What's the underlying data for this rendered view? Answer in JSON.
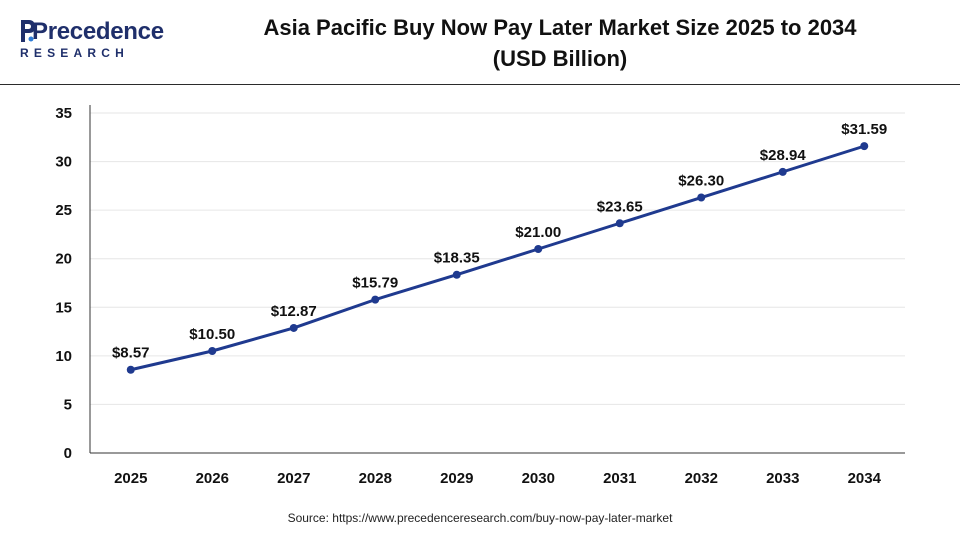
{
  "header": {
    "logo_word": "Precedence",
    "logo_sub": "RESEARCH",
    "title_line1": "Asia Pacific Buy Now Pay Later Market Size 2025 to 2034",
    "title_line2": "(USD Billion)"
  },
  "colors": {
    "series": "#1f3a8f",
    "logo": "#1f2f6b",
    "grid": "#e6e6e6",
    "axis": "#333333"
  },
  "chart_data": {
    "type": "line",
    "title": "Asia Pacific Buy Now Pay Later Market Size 2025 to 2034 (USD Billion)",
    "xlabel": "",
    "ylabel": "",
    "categories": [
      "2025",
      "2026",
      "2027",
      "2028",
      "2029",
      "2030",
      "2031",
      "2032",
      "2033",
      "2034"
    ],
    "series": [
      {
        "values": [
          8.57,
          10.5,
          12.87,
          15.79,
          18.35,
          21.0,
          23.65,
          26.3,
          28.94,
          31.59
        ],
        "labels": [
          "$8.57",
          "$10.50",
          "$12.87",
          "$15.79",
          "$18.35",
          "$21.00",
          "$23.65",
          "$26.30",
          "$28.94",
          "$31.59"
        ]
      }
    ],
    "ylim": [
      0,
      35
    ],
    "yticks": [
      "0",
      "5",
      "10",
      "15",
      "20",
      "25",
      "30",
      "35"
    ],
    "grid": true,
    "legend": "none"
  },
  "footer": {
    "source": "Source: https://www.precedenceresearch.com/buy-now-pay-later-market"
  }
}
